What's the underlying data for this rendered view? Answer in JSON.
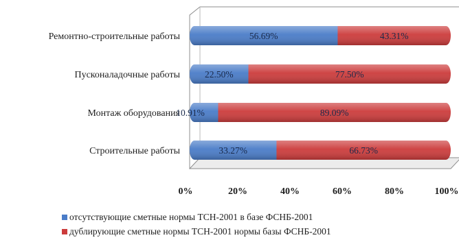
{
  "chart_data": {
    "type": "bar",
    "orientation": "horizontal",
    "stacked": "100%",
    "categories": [
      "Ремонтно-строительные работы",
      "Пусконаладочные работы",
      "Монтаж оборудования",
      "Строительные работы"
    ],
    "series": [
      {
        "name": "отсутствующие сметные нормы ТСН-2001 в базе ФСНБ-2001",
        "color": "#4a7cc8",
        "values": [
          56.69,
          22.5,
          10.91,
          33.27
        ],
        "labels": [
          "56.69%",
          "22.50%",
          "10.91%",
          "33.27%"
        ]
      },
      {
        "name": "дублирующие сметные нормы ТСН-2001 нормы базы ФСНБ-2001",
        "color": "#cc3c3c",
        "values": [
          43.31,
          77.5,
          89.09,
          66.73
        ],
        "labels": [
          "43.31%",
          "77.50%",
          "89.09%",
          "66.73%"
        ]
      }
    ],
    "xlim": [
      0,
      100
    ],
    "x_ticks": [
      "0%",
      "20%",
      "40%",
      "60%",
      "80%",
      "100%"
    ],
    "legend_position": "bottom",
    "style": "3d"
  }
}
